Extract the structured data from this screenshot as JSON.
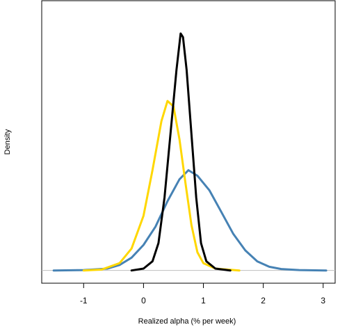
{
  "chart_data": {
    "type": "line",
    "title": "",
    "xlabel": "Realized alpha (% per week)",
    "ylabel": "Density",
    "xlim": [
      -1.7,
      3.2
    ],
    "ylim": [
      -0.07,
      1.48
    ],
    "x_ticks": [
      -1,
      0,
      1,
      2,
      3
    ],
    "x_tick_labels": [
      "-1",
      "0",
      "1",
      "2",
      "3"
    ],
    "y_ticks_shown": false,
    "baseline": 0,
    "grid": false,
    "legend": "none",
    "series": [
      {
        "color": "#4682b4",
        "points": [
          [
            -1.5,
            0
          ],
          [
            -1.0,
            0.002
          ],
          [
            -0.6,
            0.01
          ],
          [
            -0.4,
            0.03
          ],
          [
            -0.2,
            0.07
          ],
          [
            0.0,
            0.14
          ],
          [
            0.2,
            0.24
          ],
          [
            0.4,
            0.38
          ],
          [
            0.6,
            0.5
          ],
          [
            0.75,
            0.55
          ],
          [
            0.9,
            0.52
          ],
          [
            1.1,
            0.44
          ],
          [
            1.3,
            0.32
          ],
          [
            1.5,
            0.2
          ],
          [
            1.7,
            0.11
          ],
          [
            1.9,
            0.05
          ],
          [
            2.1,
            0.02
          ],
          [
            2.3,
            0.008
          ],
          [
            2.6,
            0.002
          ],
          [
            3.05,
            0
          ]
        ]
      },
      {
        "color": "#ffd700",
        "points": [
          [
            -1.0,
            0
          ],
          [
            -0.7,
            0.005
          ],
          [
            -0.4,
            0.04
          ],
          [
            -0.2,
            0.12
          ],
          [
            0.0,
            0.3
          ],
          [
            0.15,
            0.55
          ],
          [
            0.3,
            0.82
          ],
          [
            0.4,
            0.93
          ],
          [
            0.5,
            0.9
          ],
          [
            0.6,
            0.72
          ],
          [
            0.7,
            0.48
          ],
          [
            0.8,
            0.25
          ],
          [
            0.9,
            0.1
          ],
          [
            1.0,
            0.04
          ],
          [
            1.2,
            0.01
          ],
          [
            1.6,
            0
          ]
        ]
      },
      {
        "color": "#000000",
        "points": [
          [
            -0.2,
            0
          ],
          [
            0.0,
            0.01
          ],
          [
            0.15,
            0.05
          ],
          [
            0.25,
            0.15
          ],
          [
            0.35,
            0.4
          ],
          [
            0.45,
            0.75
          ],
          [
            0.55,
            1.1
          ],
          [
            0.62,
            1.3
          ],
          [
            0.66,
            1.28
          ],
          [
            0.72,
            1.1
          ],
          [
            0.8,
            0.75
          ],
          [
            0.88,
            0.4
          ],
          [
            0.96,
            0.15
          ],
          [
            1.05,
            0.05
          ],
          [
            1.2,
            0.01
          ],
          [
            1.45,
            0
          ]
        ]
      }
    ]
  }
}
